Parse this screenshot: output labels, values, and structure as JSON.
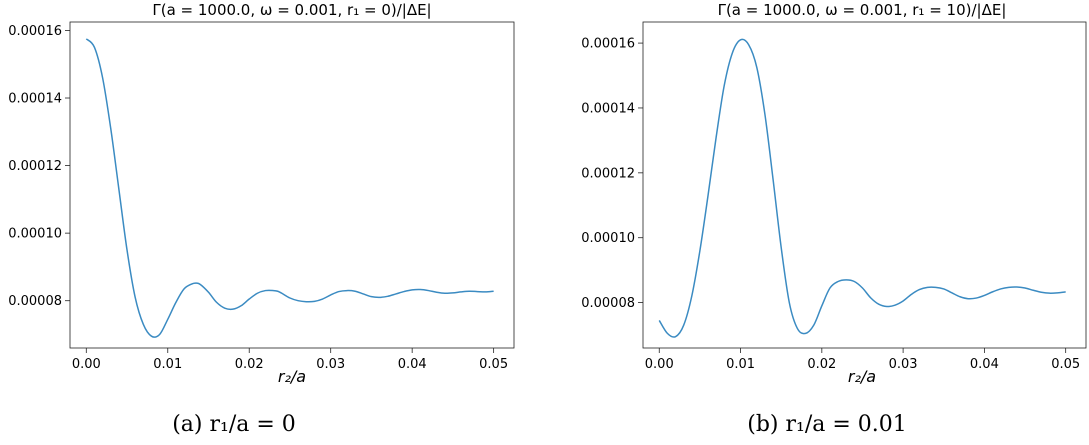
{
  "charts": [
    {
      "caption": "(a) r₁/a = 0",
      "chart_data": {
        "type": "line",
        "title": "Γ(a = 1000.0, ω = 0.001, r₁ = 0)/|ΔE|",
        "xlabel": "r₂/a",
        "ylabel": "",
        "xlim": [
          -0.002,
          0.0525
        ],
        "ylim": [
          6.6e-05,
          0.0001625
        ],
        "xticks": [
          0.0,
          0.01,
          0.02,
          0.03,
          0.04,
          0.05
        ],
        "xtick_labels": [
          "0.00",
          "0.01",
          "0.02",
          "0.03",
          "0.04",
          "0.05"
        ],
        "yticks": [
          8e-05,
          0.0001,
          0.00012,
          0.00014,
          0.00016
        ],
        "ytick_labels": [
          "0.00008",
          "0.00010",
          "0.00012",
          "0.00014",
          "0.00016"
        ],
        "grid": false,
        "color": "#3b8bc2",
        "series": [
          {
            "x": [
              0.0,
              0.001,
              0.002,
              0.003,
              0.004,
              0.005,
              0.006,
              0.007,
              0.008,
              0.009,
              0.01,
              0.011,
              0.012,
              0.013,
              0.0135,
              0.014,
              0.015,
              0.016,
              0.017,
              0.018,
              0.019,
              0.02,
              0.021,
              0.022,
              0.023,
              0.0235,
              0.024,
              0.025,
              0.026,
              0.027,
              0.028,
              0.029,
              0.03,
              0.031,
              0.032,
              0.033,
              0.034,
              0.035,
              0.036,
              0.037,
              0.038,
              0.039,
              0.04,
              0.041,
              0.042,
              0.043,
              0.044,
              0.045,
              0.046,
              0.047,
              0.048,
              0.049,
              0.05
            ],
            "y": [
              0.0001575,
              0.000155,
              0.000146,
              0.000131,
              0.000113,
              9.5e-05,
              8.1e-05,
              7.3e-05,
              6.95e-05,
              7e-05,
              7.45e-05,
              7.95e-05,
              8.35e-05,
              8.5e-05,
              8.52e-05,
              8.48e-05,
              8.25e-05,
              7.95e-05,
              7.78e-05,
              7.75e-05,
              7.85e-05,
              8.05e-05,
              8.22e-05,
              8.3e-05,
              8.3e-05,
              8.28e-05,
              8.22e-05,
              8.08e-05,
              8e-05,
              7.97e-05,
              7.98e-05,
              8.05e-05,
              8.17e-05,
              8.27e-05,
              8.3e-05,
              8.28e-05,
              8.2e-05,
              8.12e-05,
              8.1e-05,
              8.13e-05,
              8.2e-05,
              8.27e-05,
              8.32e-05,
              8.33e-05,
              8.3e-05,
              8.25e-05,
              8.22e-05,
              8.23e-05,
              8.26e-05,
              8.28e-05,
              8.27e-05,
              8.26e-05,
              8.28e-05
            ]
          }
        ]
      }
    },
    {
      "caption": "(b) r₁/a = 0.01",
      "chart_data": {
        "type": "line",
        "title": "Γ(a = 1000.0, ω = 0.001, r₁ = 10)/|ΔE|",
        "xlabel": "r₂/a",
        "ylabel": "",
        "xlim": [
          -0.002,
          0.0525
        ],
        "ylim": [
          6.6e-05,
          0.0001665
        ],
        "xticks": [
          0.0,
          0.01,
          0.02,
          0.03,
          0.04,
          0.05
        ],
        "xtick_labels": [
          "0.00",
          "0.01",
          "0.02",
          "0.03",
          "0.04",
          "0.05"
        ],
        "yticks": [
          8e-05,
          0.0001,
          0.00012,
          0.00014,
          0.00016
        ],
        "ytick_labels": [
          "0.00008",
          "0.00010",
          "0.00012",
          "0.00014",
          "0.00016"
        ],
        "grid": false,
        "color": "#3b8bc2",
        "series": [
          {
            "x": [
              0.0,
              0.001,
              0.002,
              0.003,
              0.004,
              0.005,
              0.006,
              0.007,
              0.008,
              0.009,
              0.01,
              0.011,
              0.012,
              0.013,
              0.014,
              0.015,
              0.016,
              0.017,
              0.018,
              0.019,
              0.02,
              0.021,
              0.022,
              0.023,
              0.024,
              0.025,
              0.026,
              0.027,
              0.028,
              0.029,
              0.03,
              0.031,
              0.032,
              0.033,
              0.034,
              0.035,
              0.036,
              0.037,
              0.038,
              0.039,
              0.04,
              0.041,
              0.042,
              0.043,
              0.044,
              0.045,
              0.046,
              0.047,
              0.048,
              0.049,
              0.05
            ],
            "y": [
              7.45e-05,
              7.05e-05,
              6.95e-05,
              7.3e-05,
              8.2e-05,
              9.6e-05,
              0.000113,
              0.000131,
              0.000147,
              0.000157,
              0.000161,
              0.0001595,
              0.0001525,
              0.000138,
              0.000118,
              9.7e-05,
              8e-05,
              7.2e-05,
              7.05e-05,
              7.3e-05,
              7.9e-05,
              8.45e-05,
              8.65e-05,
              8.7e-05,
              8.65e-05,
              8.45e-05,
              8.15e-05,
              7.95e-05,
              7.88e-05,
              7.92e-05,
              8.05e-05,
              8.25e-05,
              8.4e-05,
              8.47e-05,
              8.47e-05,
              8.42e-05,
              8.3e-05,
              8.18e-05,
              8.12e-05,
              8.14e-05,
              8.22e-05,
              8.33e-05,
              8.42e-05,
              8.47e-05,
              8.48e-05,
              8.45e-05,
              8.38e-05,
              8.32e-05,
              8.29e-05,
              8.3e-05,
              8.33e-05
            ]
          }
        ]
      }
    }
  ]
}
